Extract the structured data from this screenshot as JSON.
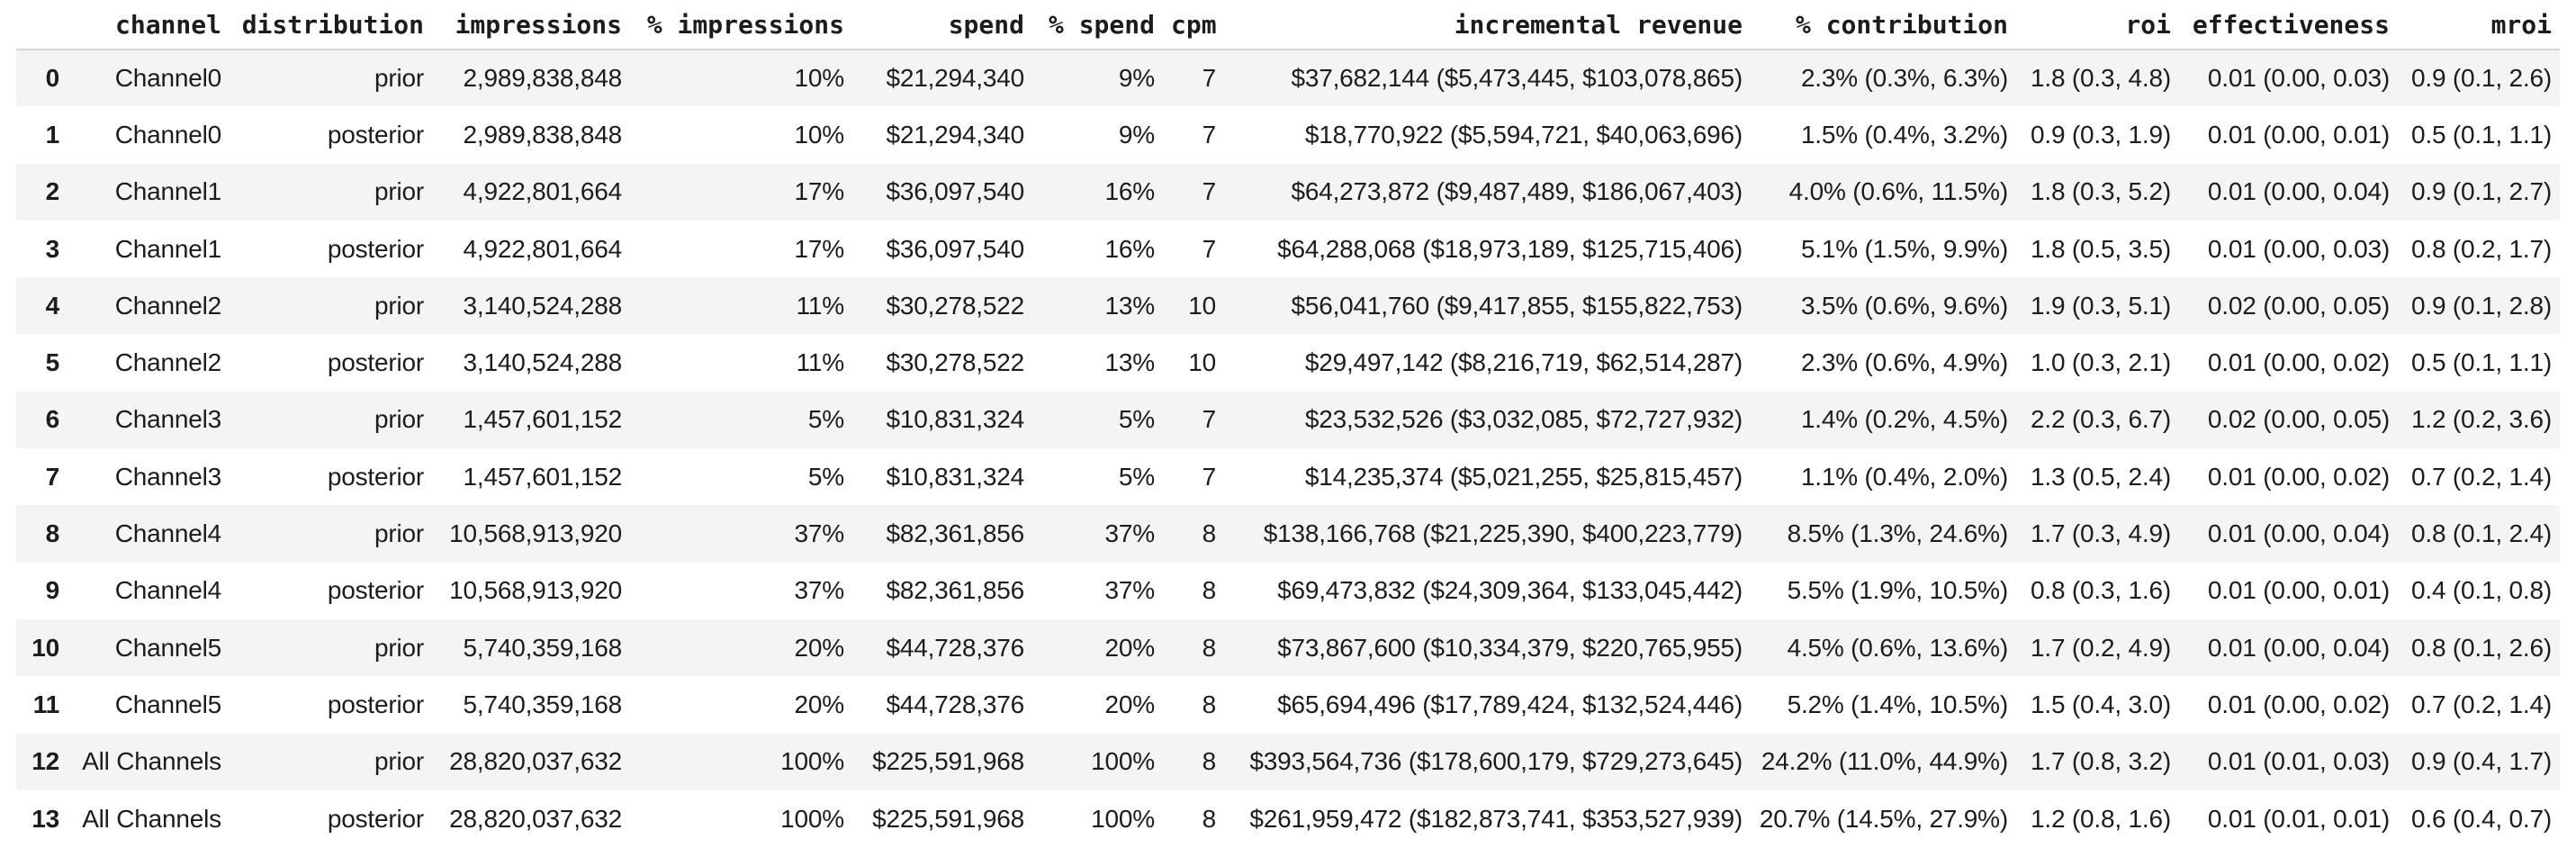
{
  "table": {
    "index_header": "",
    "columns": [
      "channel",
      "distribution",
      "impressions",
      "% impressions",
      "spend",
      "% spend",
      "cpm",
      "incremental revenue",
      "% contribution",
      "roi",
      "effectiveness",
      "mroi"
    ],
    "rows": [
      {
        "index": "0",
        "cells": [
          "Channel0",
          "prior",
          "2,989,838,848",
          "10%",
          "$21,294,340",
          "9%",
          "7",
          "$37,682,144 ($5,473,445, $103,078,865)",
          "2.3% (0.3%, 6.3%)",
          "1.8 (0.3, 4.8)",
          "0.01 (0.00, 0.03)",
          "0.9 (0.1, 2.6)"
        ]
      },
      {
        "index": "1",
        "cells": [
          "Channel0",
          "posterior",
          "2,989,838,848",
          "10%",
          "$21,294,340",
          "9%",
          "7",
          "$18,770,922 ($5,594,721, $40,063,696)",
          "1.5% (0.4%, 3.2%)",
          "0.9 (0.3, 1.9)",
          "0.01 (0.00, 0.01)",
          "0.5 (0.1, 1.1)"
        ]
      },
      {
        "index": "2",
        "cells": [
          "Channel1",
          "prior",
          "4,922,801,664",
          "17%",
          "$36,097,540",
          "16%",
          "7",
          "$64,273,872 ($9,487,489, $186,067,403)",
          "4.0% (0.6%, 11.5%)",
          "1.8 (0.3, 5.2)",
          "0.01 (0.00, 0.04)",
          "0.9 (0.1, 2.7)"
        ]
      },
      {
        "index": "3",
        "cells": [
          "Channel1",
          "posterior",
          "4,922,801,664",
          "17%",
          "$36,097,540",
          "16%",
          "7",
          "$64,288,068 ($18,973,189, $125,715,406)",
          "5.1% (1.5%, 9.9%)",
          "1.8 (0.5, 3.5)",
          "0.01 (0.00, 0.03)",
          "0.8 (0.2, 1.7)"
        ]
      },
      {
        "index": "4",
        "cells": [
          "Channel2",
          "prior",
          "3,140,524,288",
          "11%",
          "$30,278,522",
          "13%",
          "10",
          "$56,041,760 ($9,417,855, $155,822,753)",
          "3.5% (0.6%, 9.6%)",
          "1.9 (0.3, 5.1)",
          "0.02 (0.00, 0.05)",
          "0.9 (0.1, 2.8)"
        ]
      },
      {
        "index": "5",
        "cells": [
          "Channel2",
          "posterior",
          "3,140,524,288",
          "11%",
          "$30,278,522",
          "13%",
          "10",
          "$29,497,142 ($8,216,719, $62,514,287)",
          "2.3% (0.6%, 4.9%)",
          "1.0 (0.3, 2.1)",
          "0.01 (0.00, 0.02)",
          "0.5 (0.1, 1.1)"
        ]
      },
      {
        "index": "6",
        "cells": [
          "Channel3",
          "prior",
          "1,457,601,152",
          "5%",
          "$10,831,324",
          "5%",
          "7",
          "$23,532,526 ($3,032,085, $72,727,932)",
          "1.4% (0.2%, 4.5%)",
          "2.2 (0.3, 6.7)",
          "0.02 (0.00, 0.05)",
          "1.2 (0.2, 3.6)"
        ]
      },
      {
        "index": "7",
        "cells": [
          "Channel3",
          "posterior",
          "1,457,601,152",
          "5%",
          "$10,831,324",
          "5%",
          "7",
          "$14,235,374 ($5,021,255, $25,815,457)",
          "1.1% (0.4%, 2.0%)",
          "1.3 (0.5, 2.4)",
          "0.01 (0.00, 0.02)",
          "0.7 (0.2, 1.4)"
        ]
      },
      {
        "index": "8",
        "cells": [
          "Channel4",
          "prior",
          "10,568,913,920",
          "37%",
          "$82,361,856",
          "37%",
          "8",
          "$138,166,768 ($21,225,390, $400,223,779)",
          "8.5% (1.3%, 24.6%)",
          "1.7 (0.3, 4.9)",
          "0.01 (0.00, 0.04)",
          "0.8 (0.1, 2.4)"
        ]
      },
      {
        "index": "9",
        "cells": [
          "Channel4",
          "posterior",
          "10,568,913,920",
          "37%",
          "$82,361,856",
          "37%",
          "8",
          "$69,473,832 ($24,309,364, $133,045,442)",
          "5.5% (1.9%, 10.5%)",
          "0.8 (0.3, 1.6)",
          "0.01 (0.00, 0.01)",
          "0.4 (0.1, 0.8)"
        ]
      },
      {
        "index": "10",
        "cells": [
          "Channel5",
          "prior",
          "5,740,359,168",
          "20%",
          "$44,728,376",
          "20%",
          "8",
          "$73,867,600 ($10,334,379, $220,765,955)",
          "4.5% (0.6%, 13.6%)",
          "1.7 (0.2, 4.9)",
          "0.01 (0.00, 0.04)",
          "0.8 (0.1, 2.6)"
        ]
      },
      {
        "index": "11",
        "cells": [
          "Channel5",
          "posterior",
          "5,740,359,168",
          "20%",
          "$44,728,376",
          "20%",
          "8",
          "$65,694,496 ($17,789,424, $132,524,446)",
          "5.2% (1.4%, 10.5%)",
          "1.5 (0.4, 3.0)",
          "0.01 (0.00, 0.02)",
          "0.7 (0.2, 1.4)"
        ]
      },
      {
        "index": "12",
        "cells": [
          "All Channels",
          "prior",
          "28,820,037,632",
          "100%",
          "$225,591,968",
          "100%",
          "8",
          "$393,564,736 ($178,600,179, $729,273,645)",
          "24.2% (11.0%, 44.9%)",
          "1.7 (0.8, 3.2)",
          "0.01 (0.01, 0.03)",
          "0.9 (0.4, 1.7)"
        ]
      },
      {
        "index": "13",
        "cells": [
          "All Channels",
          "posterior",
          "28,820,037,632",
          "100%",
          "$225,591,968",
          "100%",
          "8",
          "$261,959,472 ($182,873,741, $353,527,939)",
          "20.7% (14.5%, 27.9%)",
          "1.2 (0.8, 1.6)",
          "0.01 (0.01, 0.01)",
          "0.6 (0.4, 0.7)"
        ]
      }
    ]
  },
  "colors": {
    "text": "#1c1c1c",
    "row_stripe": "#f4f4f4",
    "header_border": "#d4d4d4",
    "background": "#ffffff"
  }
}
